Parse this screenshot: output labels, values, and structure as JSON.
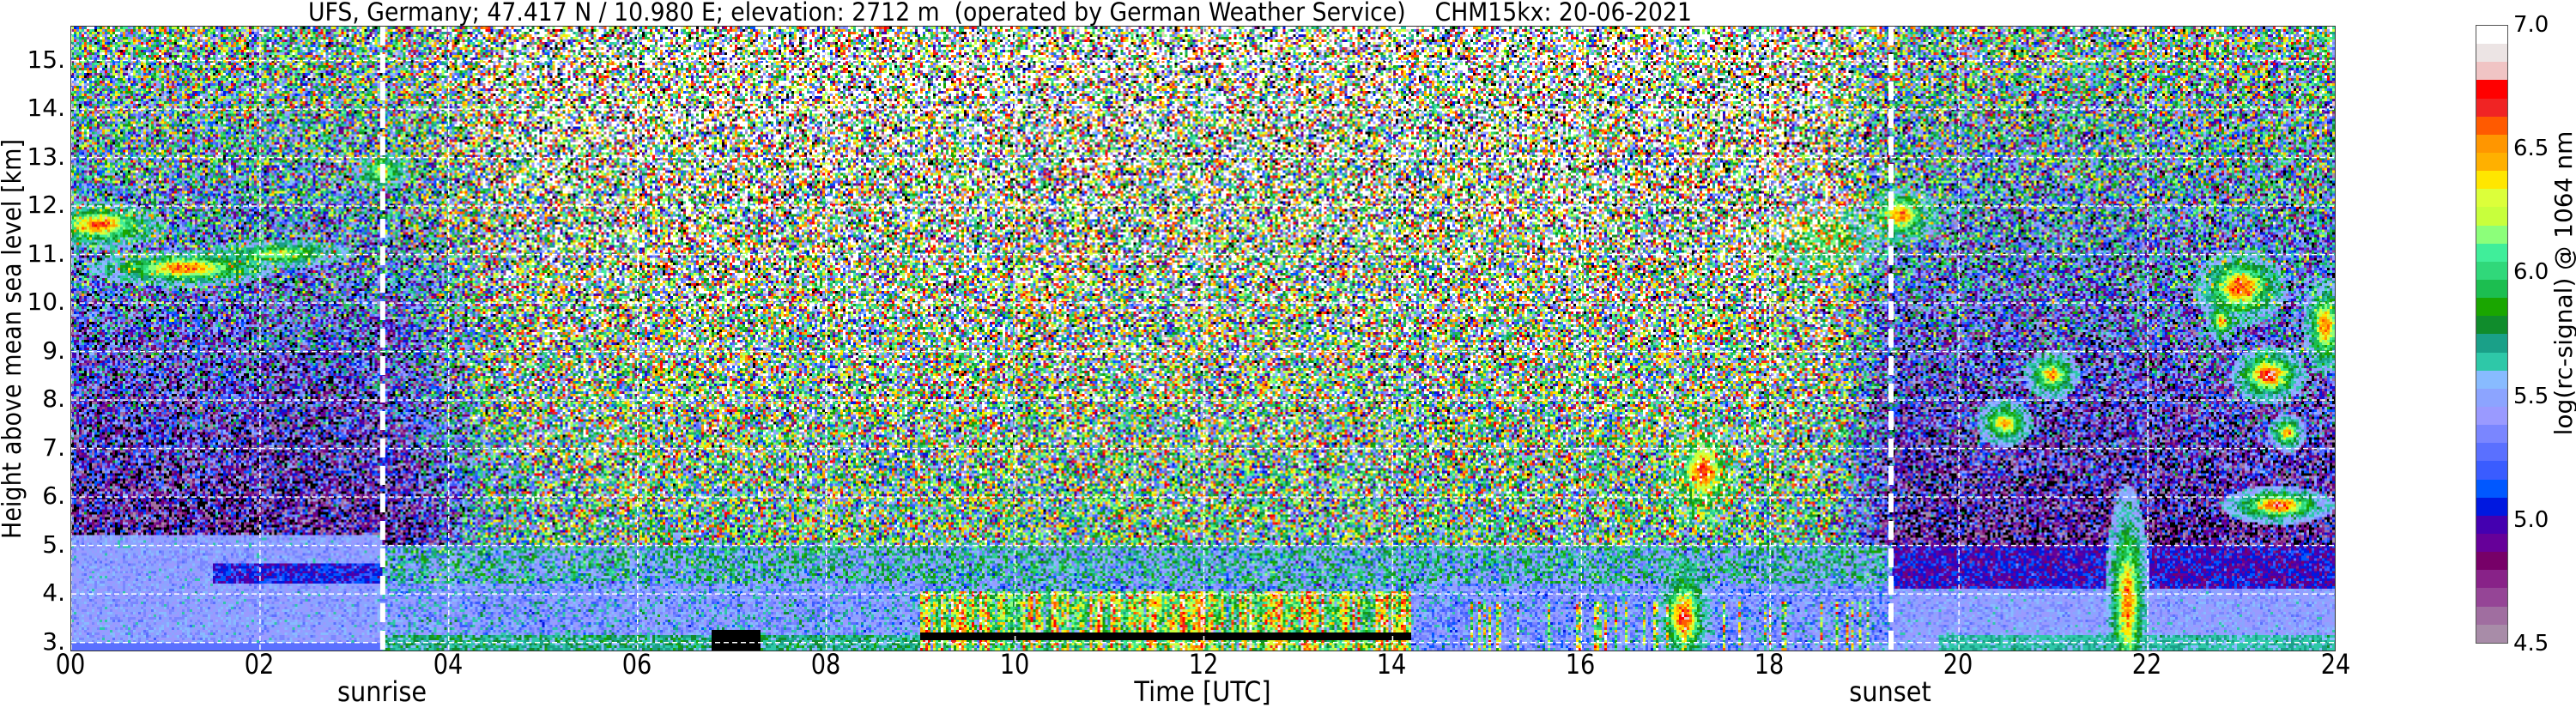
{
  "chart_data": {
    "type": "heatmap",
    "title": "UFS, Germany; 47.417 N / 10.980 E; elevation: 2712 m  (operated by German Weather Service)    CHM15kx: 20-06-2021",
    "xlabel": "Time [UTC]",
    "ylabel": "Height above mean sea level [km]",
    "xlim": [
      0,
      24
    ],
    "ylim": [
      2.8,
      15.7
    ],
    "x_ticks": [
      "00",
      "02",
      "04",
      "06",
      "08",
      "10",
      "12",
      "14",
      "16",
      "18",
      "20",
      "22",
      "24"
    ],
    "x_tick_values": [
      0,
      2,
      4,
      6,
      8,
      10,
      12,
      14,
      16,
      18,
      20,
      22,
      24
    ],
    "y_ticks": [
      "3.",
      "4.",
      "5.",
      "6.",
      "7.",
      "8.",
      "9.",
      "10.",
      "11.",
      "12.",
      "13.",
      "14.",
      "15."
    ],
    "y_tick_values": [
      3,
      4,
      5,
      6,
      7,
      8,
      9,
      10,
      11,
      12,
      13,
      14,
      15
    ],
    "grid": true,
    "annotations": [
      {
        "label": "sunrise",
        "x": 3.3,
        "style": "white dashed vertical line"
      },
      {
        "label": "sunset",
        "x": 19.28,
        "style": "white dashed vertical line"
      }
    ],
    "colorbar": {
      "label": "log(rc-signal) @ 1064 nm",
      "range": [
        4.5,
        7.0
      ],
      "ticks": [
        "4.5",
        "5.0",
        "5.5",
        "6.0",
        "6.5",
        "7.0"
      ],
      "tick_values": [
        4.5,
        5.0,
        5.5,
        6.0,
        6.5,
        7.0
      ],
      "colors_top_to_bottom": [
        "#ffffff",
        "#ece4e4",
        "#f0c4c4",
        "#ff0000",
        "#f02424",
        "#ff5a00",
        "#ff9600",
        "#ffb000",
        "#ffe600",
        "#dcff3a",
        "#c8ff3c",
        "#8cff7a",
        "#40ee9a",
        "#30d87a",
        "#1cbe50",
        "#1aa600",
        "#108c2c",
        "#1aa088",
        "#2ec8a8",
        "#88bbff",
        "#8ca4ff",
        "#9a9aff",
        "#7a86ff",
        "#5a70ff",
        "#3a5cff",
        "#0058ff",
        "#0018e0",
        "#4400b0",
        "#660099",
        "#770068",
        "#882288",
        "#954596",
        "#a06ea0",
        "#a88ca8"
      ]
    }
  }
}
